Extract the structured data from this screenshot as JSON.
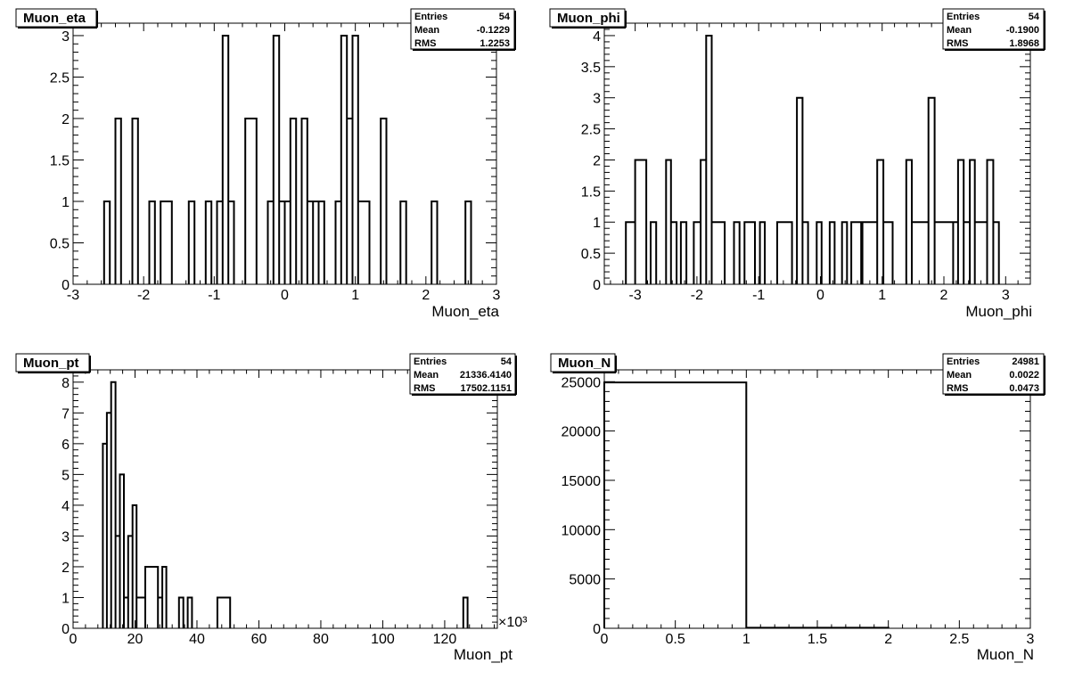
{
  "chart_data": [
    {
      "type": "histogram",
      "title": "Muon_eta",
      "xlabel": "Muon_eta",
      "xlim": [
        -3,
        3
      ],
      "ylim": [
        0,
        3.15
      ],
      "xticks": [
        -3,
        -2,
        -1,
        0,
        1,
        2,
        3
      ],
      "xtick_labels": [
        "-3",
        "-2",
        "-1",
        "0",
        "1",
        "2",
        "3"
      ],
      "yticks": [
        0,
        0.5,
        1,
        1.5,
        2,
        2.5,
        3
      ],
      "ytick_labels": [
        "0",
        "0.5",
        "1",
        "1.5",
        "2",
        "2.5",
        "3"
      ],
      "exponent": "",
      "stats": [
        {
          "label": "Entries",
          "value": "54"
        },
        {
          "label": "Mean",
          "value": "-0.1229"
        },
        {
          "label": "RMS",
          "value": "1.2253"
        }
      ],
      "bins": [
        [
          -2.56,
          -2.48,
          1
        ],
        [
          -2.4,
          -2.32,
          2
        ],
        [
          -2.16,
          -2.08,
          2
        ],
        [
          -1.92,
          -1.84,
          1
        ],
        [
          -1.76,
          -1.6,
          1
        ],
        [
          -1.36,
          -1.28,
          1
        ],
        [
          -1.12,
          -1.04,
          1
        ],
        [
          -0.96,
          -0.88,
          1
        ],
        [
          -0.88,
          -0.8,
          3
        ],
        [
          -0.8,
          -0.72,
          1
        ],
        [
          -0.56,
          -0.4,
          2
        ],
        [
          -0.24,
          -0.16,
          1
        ],
        [
          -0.16,
          -0.08,
          3
        ],
        [
          -0.08,
          0.0,
          1
        ],
        [
          0.0,
          0.08,
          1
        ],
        [
          0.08,
          0.16,
          2
        ],
        [
          0.24,
          0.32,
          2
        ],
        [
          0.32,
          0.4,
          1
        ],
        [
          0.4,
          0.48,
          1
        ],
        [
          0.48,
          0.56,
          1
        ],
        [
          0.72,
          0.8,
          1
        ],
        [
          0.8,
          0.88,
          3
        ],
        [
          0.88,
          0.96,
          2
        ],
        [
          0.96,
          1.04,
          3
        ],
        [
          1.04,
          1.2,
          1
        ],
        [
          1.36,
          1.44,
          2
        ],
        [
          1.64,
          1.72,
          1
        ],
        [
          2.08,
          2.16,
          1
        ],
        [
          2.56,
          2.64,
          1
        ]
      ]
    },
    {
      "type": "histogram",
      "title": "Muon_phi",
      "xlabel": "Muon_phi",
      "xlim": [
        -3.5,
        3.4
      ],
      "ylim": [
        0,
        4.2
      ],
      "xticks": [
        -3,
        -2,
        -1,
        0,
        1,
        2,
        3
      ],
      "xtick_labels": [
        "-3",
        "-2",
        "-1",
        "0",
        "1",
        "2",
        "3"
      ],
      "yticks": [
        0,
        0.5,
        1,
        1.5,
        2,
        2.5,
        3,
        3.5,
        4
      ],
      "ytick_labels": [
        "0",
        "0.5",
        "1",
        "1.5",
        "2",
        "2.5",
        "3",
        "3.5",
        "4"
      ],
      "exponent": "",
      "stats": [
        {
          "label": "Entries",
          "value": "54"
        },
        {
          "label": "Mean",
          "value": "-0.1900"
        },
        {
          "label": "RMS",
          "value": "1.8968"
        }
      ],
      "bins": [
        [
          -3.15,
          -3.0,
          1
        ],
        [
          -3.0,
          -2.82,
          2
        ],
        [
          -2.75,
          -2.66,
          1
        ],
        [
          -2.5,
          -2.42,
          2
        ],
        [
          -2.42,
          -2.33,
          1
        ],
        [
          -2.26,
          -2.17,
          1
        ],
        [
          -2.05,
          -1.94,
          1
        ],
        [
          -1.94,
          -1.85,
          2
        ],
        [
          -1.85,
          -1.76,
          4
        ],
        [
          -1.76,
          -1.55,
          1
        ],
        [
          -1.4,
          -1.31,
          1
        ],
        [
          -1.23,
          -1.06,
          1
        ],
        [
          -0.98,
          -0.9,
          1
        ],
        [
          -0.7,
          -0.46,
          1
        ],
        [
          -0.38,
          -0.29,
          3
        ],
        [
          -0.29,
          -0.2,
          1
        ],
        [
          -0.06,
          0.02,
          1
        ],
        [
          0.15,
          0.23,
          1
        ],
        [
          0.35,
          0.43,
          1
        ],
        [
          0.5,
          0.66,
          1
        ],
        [
          0.68,
          0.92,
          1
        ],
        [
          0.92,
          1.02,
          2
        ],
        [
          1.02,
          1.17,
          1
        ],
        [
          1.39,
          1.48,
          2
        ],
        [
          1.48,
          1.75,
          1
        ],
        [
          1.75,
          1.85,
          3
        ],
        [
          1.85,
          2.15,
          1
        ],
        [
          2.15,
          2.23,
          1
        ],
        [
          2.23,
          2.32,
          2
        ],
        [
          2.32,
          2.42,
          1
        ],
        [
          2.42,
          2.5,
          2
        ],
        [
          2.5,
          2.7,
          1
        ],
        [
          2.7,
          2.8,
          2
        ],
        [
          2.8,
          2.89,
          1
        ]
      ]
    },
    {
      "type": "histogram",
      "title": "Muon_pt",
      "xlabel": "Muon_pt",
      "xlim": [
        0,
        137
      ],
      "ylim": [
        0,
        8.4
      ],
      "xticks": [
        0,
        20,
        40,
        60,
        80,
        100,
        120
      ],
      "xtick_labels": [
        "0",
        "20",
        "40",
        "60",
        "80",
        "100",
        "120"
      ],
      "yticks": [
        0,
        1,
        2,
        3,
        4,
        5,
        6,
        7,
        8
      ],
      "ytick_labels": [
        "0",
        "1",
        "2",
        "3",
        "4",
        "5",
        "6",
        "7",
        "8"
      ],
      "exponent": "×10³",
      "stats": [
        {
          "label": "Entries",
          "value": "54"
        },
        {
          "label": "Mean",
          "value": "21336.4140"
        },
        {
          "label": "RMS",
          "value": "17502.1151"
        }
      ],
      "bins": [
        [
          9.6,
          10.9,
          6
        ],
        [
          10.9,
          12.3,
          7
        ],
        [
          12.3,
          13.7,
          8
        ],
        [
          13.7,
          15.1,
          3
        ],
        [
          15.1,
          16.4,
          5
        ],
        [
          16.4,
          17.8,
          1
        ],
        [
          17.8,
          19.2,
          3
        ],
        [
          19.2,
          20.5,
          4
        ],
        [
          20.5,
          23.3,
          1
        ],
        [
          23.3,
          27.4,
          2
        ],
        [
          27.4,
          28.8,
          1
        ],
        [
          28.8,
          30.1,
          2
        ],
        [
          34.2,
          35.6,
          1
        ],
        [
          37.0,
          38.4,
          1
        ],
        [
          46.6,
          50.7,
          1
        ],
        [
          126.0,
          127.4,
          1
        ]
      ]
    },
    {
      "type": "histogram",
      "title": "Muon_N",
      "xlabel": "Muon_N",
      "xlim": [
        0,
        3
      ],
      "ylim": [
        0,
        26200
      ],
      "xticks": [
        0,
        0.5,
        1,
        1.5,
        2,
        2.5,
        3
      ],
      "xtick_labels": [
        "0",
        "0.5",
        "1",
        "1.5",
        "2",
        "2.5",
        "3"
      ],
      "yticks": [
        0,
        5000,
        10000,
        15000,
        20000,
        25000
      ],
      "ytick_labels": [
        "0",
        "5000",
        "10000",
        "15000",
        "20000",
        "25000"
      ],
      "exponent": "",
      "stats": [
        {
          "label": "Entries",
          "value": "24981"
        },
        {
          "label": "Mean",
          "value": "0.0022"
        },
        {
          "label": "RMS",
          "value": "0.0473"
        }
      ],
      "bins": [
        [
          0,
          1,
          24927
        ],
        [
          1,
          2,
          54
        ]
      ]
    }
  ]
}
